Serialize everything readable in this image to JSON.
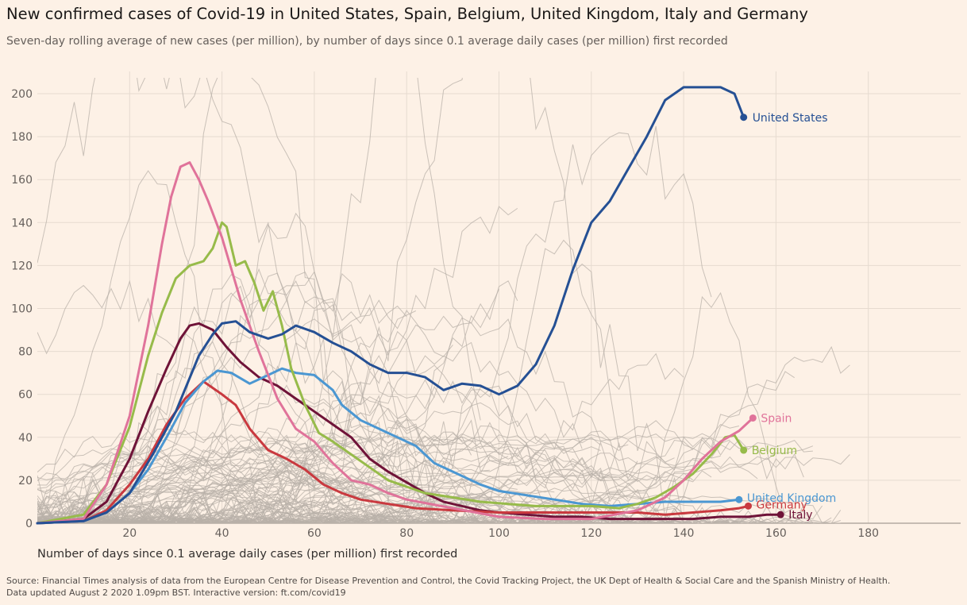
{
  "header": {
    "title": "New confirmed cases of Covid-19 in United States, Spain, Belgium, United Kingdom, Italy and Germany",
    "subtitle": "Seven-day rolling average of new cases (per million), by number of days since 0.1 average daily cases (per million) first recorded"
  },
  "footer": {
    "source_line1": "Source: Financial Times analysis of data from the European Centre for Disease Prevention and Control, the Covid Tracking Project, the UK Dept of Health & Social Care and the Spanish Ministry of Health.",
    "source_line2": "Data updated August 2 2020 1.09pm BST. Interactive version: ft.com/covid19"
  },
  "colors": {
    "background": "#fdf1e6",
    "grid": "#e6dbd0",
    "context_lines": "#b8b0a8",
    "United States": "#255094",
    "Spain": "#e0739a",
    "Belgium": "#97bb4a",
    "United Kingdom": "#4b97d2",
    "Germany": "#c9393f",
    "Italy": "#6f1338"
  },
  "chart_data": {
    "type": "line",
    "title": "New confirmed cases of Covid-19 in United States, Spain, Belgium, United Kingdom, Italy and Germany",
    "xlabel": "Number of days since 0.1 average daily cases (per million) first recorded",
    "ylabel": "",
    "xlim": [
      0,
      200
    ],
    "ylim": [
      0,
      200
    ],
    "xticks": [
      20,
      40,
      60,
      80,
      100,
      120,
      140,
      160,
      180
    ],
    "yticks": [
      0,
      20,
      40,
      60,
      80,
      100,
      120,
      140,
      160,
      180,
      200
    ],
    "grid": true,
    "legend": "direct labels at line ends",
    "series": [
      {
        "name": "United States",
        "points": [
          [
            0,
            0
          ],
          [
            10,
            1
          ],
          [
            15,
            5
          ],
          [
            20,
            14
          ],
          [
            25,
            32
          ],
          [
            30,
            52
          ],
          [
            35,
            78
          ],
          [
            38,
            88
          ],
          [
            40,
            93
          ],
          [
            43,
            94
          ],
          [
            46,
            89
          ],
          [
            50,
            86
          ],
          [
            53,
            88
          ],
          [
            56,
            92
          ],
          [
            60,
            89
          ],
          [
            64,
            84
          ],
          [
            68,
            80
          ],
          [
            72,
            74
          ],
          [
            76,
            70
          ],
          [
            80,
            70
          ],
          [
            84,
            68
          ],
          [
            88,
            62
          ],
          [
            92,
            65
          ],
          [
            96,
            64
          ],
          [
            100,
            60
          ],
          [
            104,
            64
          ],
          [
            108,
            74
          ],
          [
            112,
            92
          ],
          [
            116,
            118
          ],
          [
            120,
            140
          ],
          [
            124,
            150
          ],
          [
            128,
            165
          ],
          [
            132,
            180
          ],
          [
            136,
            197
          ],
          [
            140,
            208
          ],
          [
            144,
            210
          ],
          [
            148,
            206
          ],
          [
            151,
            200
          ],
          [
            153,
            189
          ]
        ]
      },
      {
        "name": "Spain",
        "points": [
          [
            0,
            0
          ],
          [
            10,
            2
          ],
          [
            15,
            18
          ],
          [
            20,
            50
          ],
          [
            24,
            92
          ],
          [
            27,
            130
          ],
          [
            29,
            152
          ],
          [
            31,
            166
          ],
          [
            33,
            168
          ],
          [
            35,
            160
          ],
          [
            37,
            150
          ],
          [
            40,
            133
          ],
          [
            44,
            104
          ],
          [
            48,
            80
          ],
          [
            52,
            58
          ],
          [
            56,
            44
          ],
          [
            60,
            38
          ],
          [
            64,
            28
          ],
          [
            68,
            20
          ],
          [
            72,
            18
          ],
          [
            76,
            14
          ],
          [
            80,
            11
          ],
          [
            90,
            7
          ],
          [
            100,
            3
          ],
          [
            110,
            2
          ],
          [
            120,
            2
          ],
          [
            130,
            6
          ],
          [
            136,
            12
          ],
          [
            140,
            20
          ],
          [
            144,
            30
          ],
          [
            148,
            38
          ],
          [
            152,
            43
          ],
          [
            155,
            49
          ]
        ]
      },
      {
        "name": "Belgium",
        "points": [
          [
            0,
            0
          ],
          [
            10,
            4
          ],
          [
            15,
            18
          ],
          [
            20,
            45
          ],
          [
            24,
            78
          ],
          [
            27,
            98
          ],
          [
            30,
            114
          ],
          [
            33,
            120
          ],
          [
            36,
            122
          ],
          [
            38,
            128
          ],
          [
            40,
            140
          ],
          [
            41,
            138
          ],
          [
            43,
            120
          ],
          [
            45,
            122
          ],
          [
            47,
            112
          ],
          [
            49,
            99
          ],
          [
            51,
            108
          ],
          [
            53,
            92
          ],
          [
            55,
            72
          ],
          [
            58,
            55
          ],
          [
            61,
            42
          ],
          [
            64,
            38
          ],
          [
            68,
            32
          ],
          [
            72,
            26
          ],
          [
            76,
            20
          ],
          [
            80,
            17
          ],
          [
            84,
            14
          ],
          [
            90,
            12
          ],
          [
            96,
            10
          ],
          [
            102,
            9
          ],
          [
            108,
            8
          ],
          [
            114,
            8
          ],
          [
            120,
            8
          ],
          [
            126,
            7
          ],
          [
            130,
            9
          ],
          [
            134,
            12
          ],
          [
            138,
            17
          ],
          [
            142,
            23
          ],
          [
            146,
            32
          ],
          [
            149,
            40
          ],
          [
            151,
            41
          ],
          [
            153,
            34
          ]
        ]
      },
      {
        "name": "United Kingdom",
        "points": [
          [
            0,
            0
          ],
          [
            10,
            1
          ],
          [
            15,
            5
          ],
          [
            20,
            14
          ],
          [
            24,
            25
          ],
          [
            28,
            40
          ],
          [
            32,
            56
          ],
          [
            36,
            66
          ],
          [
            39,
            71
          ],
          [
            42,
            70
          ],
          [
            46,
            65
          ],
          [
            50,
            69
          ],
          [
            53,
            72
          ],
          [
            56,
            70
          ],
          [
            60,
            69
          ],
          [
            64,
            62
          ],
          [
            66,
            55
          ],
          [
            70,
            48
          ],
          [
            74,
            44
          ],
          [
            78,
            40
          ],
          [
            82,
            36
          ],
          [
            86,
            28
          ],
          [
            90,
            24
          ],
          [
            96,
            18
          ],
          [
            100,
            15
          ],
          [
            106,
            13
          ],
          [
            112,
            11
          ],
          [
            118,
            9
          ],
          [
            124,
            8
          ],
          [
            130,
            9
          ],
          [
            136,
            10
          ],
          [
            142,
            10
          ],
          [
            148,
            10
          ],
          [
            152,
            11
          ]
        ]
      },
      {
        "name": "Germany",
        "points": [
          [
            0,
            0
          ],
          [
            10,
            1
          ],
          [
            15,
            6
          ],
          [
            20,
            18
          ],
          [
            24,
            30
          ],
          [
            28,
            46
          ],
          [
            32,
            58
          ],
          [
            36,
            66
          ],
          [
            38,
            63
          ],
          [
            40,
            60
          ],
          [
            43,
            55
          ],
          [
            46,
            44
          ],
          [
            50,
            34
          ],
          [
            54,
            30
          ],
          [
            58,
            25
          ],
          [
            62,
            18
          ],
          [
            66,
            14
          ],
          [
            70,
            11
          ],
          [
            76,
            9
          ],
          [
            82,
            7
          ],
          [
            90,
            6
          ],
          [
            100,
            5
          ],
          [
            110,
            5
          ],
          [
            118,
            5
          ],
          [
            124,
            5
          ],
          [
            130,
            5
          ],
          [
            136,
            4
          ],
          [
            142,
            5
          ],
          [
            148,
            6
          ],
          [
            152,
            7
          ],
          [
            154,
            8
          ]
        ]
      },
      {
        "name": "Italy",
        "points": [
          [
            0,
            0
          ],
          [
            10,
            2
          ],
          [
            15,
            10
          ],
          [
            20,
            30
          ],
          [
            24,
            52
          ],
          [
            28,
            72
          ],
          [
            31,
            86
          ],
          [
            33,
            92
          ],
          [
            35,
            93
          ],
          [
            38,
            90
          ],
          [
            41,
            82
          ],
          [
            44,
            75
          ],
          [
            48,
            68
          ],
          [
            52,
            64
          ],
          [
            56,
            58
          ],
          [
            60,
            52
          ],
          [
            64,
            46
          ],
          [
            68,
            40
          ],
          [
            72,
            30
          ],
          [
            76,
            24
          ],
          [
            80,
            19
          ],
          [
            84,
            14
          ],
          [
            88,
            10
          ],
          [
            92,
            8
          ],
          [
            96,
            6
          ],
          [
            100,
            5
          ],
          [
            106,
            4
          ],
          [
            112,
            3
          ],
          [
            118,
            3
          ],
          [
            124,
            2
          ],
          [
            130,
            2
          ],
          [
            136,
            2
          ],
          [
            142,
            2
          ],
          [
            148,
            3
          ],
          [
            154,
            3
          ],
          [
            158,
            4
          ],
          [
            161,
            4
          ]
        ]
      }
    ]
  }
}
